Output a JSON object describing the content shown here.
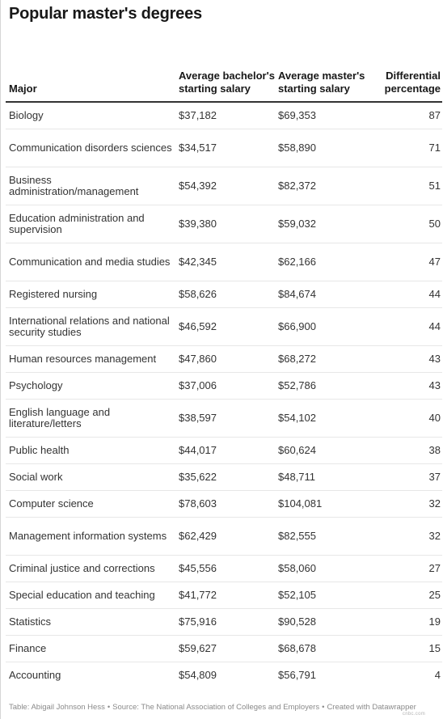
{
  "title": "Popular master's degrees",
  "headers": {
    "major": "Major",
    "bachelor": "Average bachelor's starting salary",
    "master": "Average master's starting salary",
    "differential": "Differential percentage"
  },
  "chart_data": {
    "type": "table",
    "columns": [
      "Major",
      "Average bachelor's starting salary",
      "Average master's starting salary",
      "Differential percentage"
    ],
    "rows": [
      {
        "major": "Biology",
        "bachelor": "$37,182",
        "master": "$69,353",
        "diff": "87"
      },
      {
        "major": "Communication disorders sciences",
        "bachelor": "$34,517",
        "master": "$58,890",
        "diff": "71"
      },
      {
        "major": "Business administration/management",
        "bachelor": "$54,392",
        "master": "$82,372",
        "diff": "51"
      },
      {
        "major": "Education administration and supervision",
        "bachelor": "$39,380",
        "master": "$59,032",
        "diff": "50"
      },
      {
        "major": "Communication and media studies",
        "bachelor": "$42,345",
        "master": "$62,166",
        "diff": "47"
      },
      {
        "major": "Registered nursing",
        "bachelor": "$58,626",
        "master": "$84,674",
        "diff": "44"
      },
      {
        "major": "International relations and national security studies",
        "bachelor": "$46,592",
        "master": "$66,900",
        "diff": "44"
      },
      {
        "major": "Human resources management",
        "bachelor": "$47,860",
        "master": "$68,272",
        "diff": "43"
      },
      {
        "major": "Psychology",
        "bachelor": "$37,006",
        "master": "$52,786",
        "diff": "43"
      },
      {
        "major": "English language and literature/letters",
        "bachelor": "$38,597",
        "master": "$54,102",
        "diff": "40"
      },
      {
        "major": "Public health",
        "bachelor": "$44,017",
        "master": "$60,624",
        "diff": "38"
      },
      {
        "major": "Social work",
        "bachelor": "$35,622",
        "master": "$48,711",
        "diff": "37"
      },
      {
        "major": "Computer science",
        "bachelor": "$78,603",
        "master": "$104,081",
        "diff": "32"
      },
      {
        "major": "Management information systems",
        "bachelor": "$62,429",
        "master": "$82,555",
        "diff": "32"
      },
      {
        "major": "Criminal justice and corrections",
        "bachelor": "$45,556",
        "master": "$58,060",
        "diff": "27"
      },
      {
        "major": "Special education and teaching",
        "bachelor": "$41,772",
        "master": "$52,105",
        "diff": "25"
      },
      {
        "major": "Statistics",
        "bachelor": "$75,916",
        "master": "$90,528",
        "diff": "19"
      },
      {
        "major": "Finance",
        "bachelor": "$59,627",
        "master": "$68,678",
        "diff": "15"
      },
      {
        "major": "Accounting",
        "bachelor": "$54,809",
        "master": "$56,791",
        "diff": "4"
      }
    ]
  },
  "footer": {
    "table_credit": "Table: Abigail Johnson Hess",
    "source": "Source: The National Association of Colleges and Employers",
    "created_with": "Created with Datawrapper",
    "separator": "•"
  },
  "watermark": "cnbc.com"
}
